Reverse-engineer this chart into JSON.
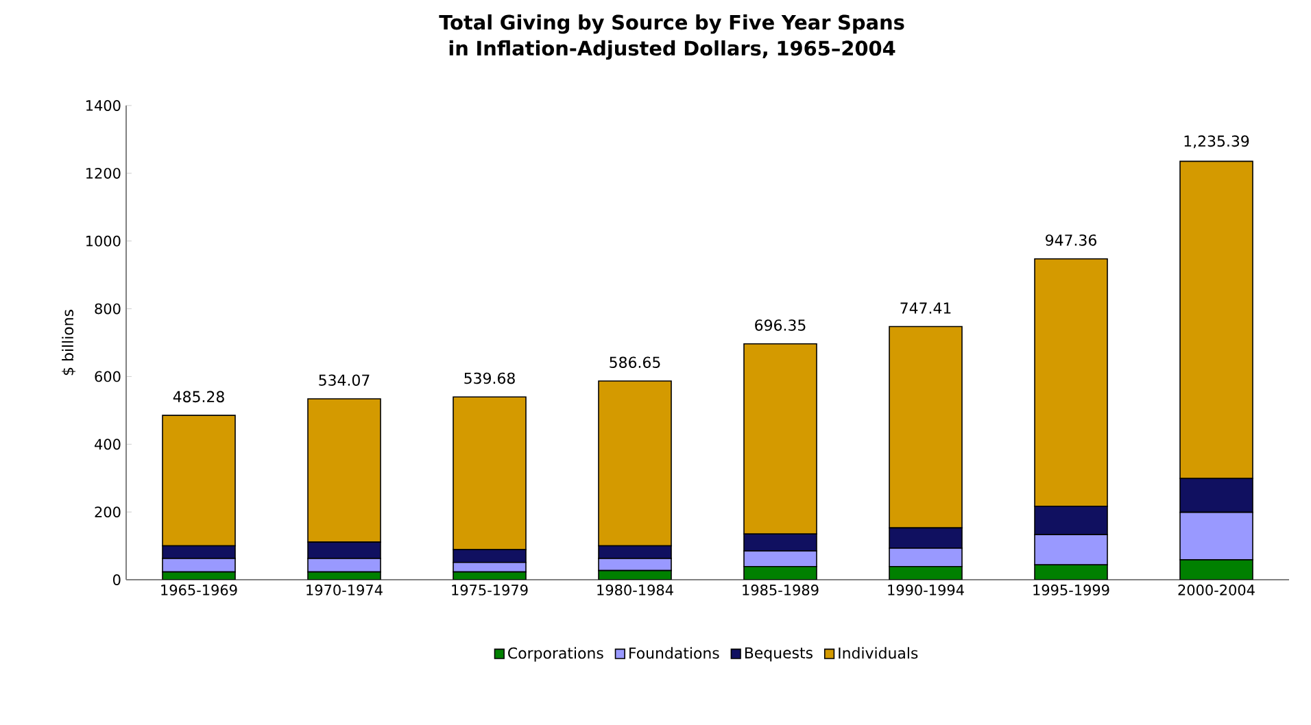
{
  "chart_data": {
    "type": "bar",
    "stacked": true,
    "title": "Total Giving by Source by Five Year Spans\nin Inflation-Adjusted Dollars, 1965–2004",
    "ylabel": "$ billions",
    "categories": [
      "1965-1969",
      "1970-1974",
      "1975-1979",
      "1980-1984",
      "1985-1989",
      "1990-1994",
      "1995-1999",
      "2000-2004"
    ],
    "series": [
      {
        "name": "Corporations",
        "color": "#008000",
        "values": [
          23,
          23,
          23,
          27,
          39,
          39,
          44,
          59
        ]
      },
      {
        "name": "Foundations",
        "color": "#9999ff",
        "values": [
          40,
          40,
          28,
          36,
          46,
          54,
          89,
          140
        ]
      },
      {
        "name": "Bequests",
        "color": "#101060",
        "values": [
          37,
          48,
          38,
          37,
          50,
          60,
          84,
          100
        ]
      },
      {
        "name": "Individuals",
        "color": "#d49a00",
        "values": [
          385.28,
          423.07,
          450.68,
          486.65,
          561.35,
          594.41,
          730.36,
          936.39
        ]
      }
    ],
    "totals": [
      "485.28",
      "534.07",
      "539.68",
      "586.65",
      "696.35",
      "747.41",
      "947.36",
      "1,235.39"
    ],
    "ylim": [
      0,
      1400
    ],
    "yticks": [
      0,
      200,
      400,
      600,
      800,
      1000,
      1200,
      1400
    ],
    "grid": false,
    "legend": "bottom"
  }
}
